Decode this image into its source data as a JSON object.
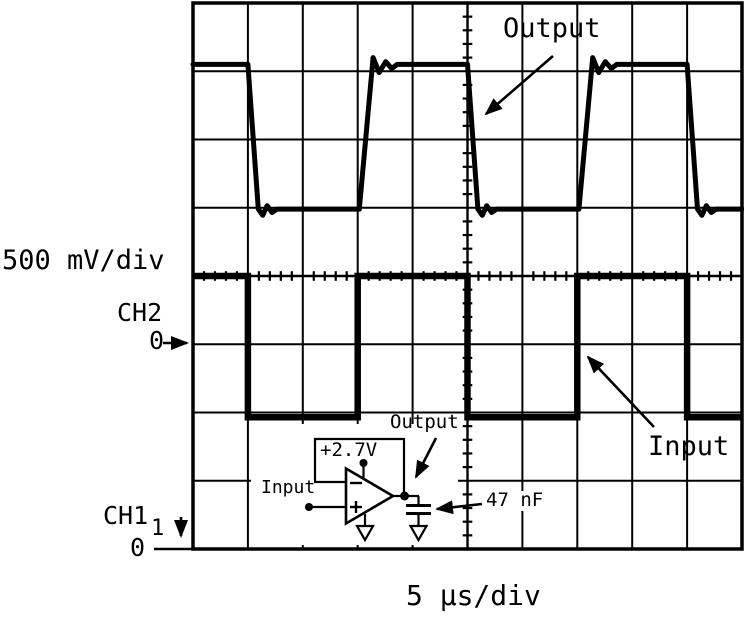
{
  "scope": {
    "vertical_scale": "500 mV/div",
    "horizontal_scale": "5 μs/div",
    "ch2": {
      "label": "CH2",
      "zero": "0"
    },
    "ch1": {
      "label": "CH1",
      "marker": "1",
      "zero": "0"
    },
    "output_annotation": "Output",
    "input_annotation": "Input"
  },
  "circuit": {
    "supply": "+2.7V",
    "input": "Input",
    "output": "Output",
    "capacitor": "47 nF"
  },
  "chart_data": {
    "type": "line",
    "title": "",
    "xlabel": "5 μs/div",
    "ylabel": "500 mV/div",
    "x_range_div": [
      0,
      10
    ],
    "y_divisions": 8,
    "volts_per_div": 0.5,
    "time_per_div_us": 5,
    "grid": true,
    "legend_position": "annotated-arrows",
    "series": [
      {
        "name": "Output",
        "channel": "CH2",
        "zero_div_from_top": 5,
        "points_div_volts": [
          [
            0,
            2.05
          ],
          [
            1.0,
            2.05
          ],
          [
            1.19,
            0.99
          ],
          [
            1.27,
            0.945
          ],
          [
            1.35,
            1.015
          ],
          [
            1.44,
            0.965
          ],
          [
            1.53,
            0.99
          ],
          [
            3.03,
            0.99
          ],
          [
            3.28,
            2.1
          ],
          [
            3.39,
            1.99
          ],
          [
            3.51,
            2.07
          ],
          [
            3.62,
            2.02
          ],
          [
            3.72,
            2.05
          ],
          [
            5.0,
            2.05
          ],
          [
            5.19,
            0.99
          ],
          [
            5.27,
            0.945
          ],
          [
            5.35,
            1.015
          ],
          [
            5.44,
            0.965
          ],
          [
            5.53,
            0.99
          ],
          [
            7.03,
            0.99
          ],
          [
            7.28,
            2.1
          ],
          [
            7.39,
            1.99
          ],
          [
            7.51,
            2.07
          ],
          [
            7.62,
            2.02
          ],
          [
            7.72,
            2.05
          ],
          [
            9.0,
            2.05
          ],
          [
            9.19,
            0.99
          ],
          [
            9.27,
            0.945
          ],
          [
            9.35,
            1.015
          ],
          [
            9.44,
            0.965
          ],
          [
            9.53,
            0.99
          ],
          [
            10,
            0.99
          ]
        ]
      },
      {
        "name": "Input",
        "channel": "CH1",
        "zero_div_from_top": 8,
        "points_div_volts": [
          [
            0,
            2.0
          ],
          [
            1.0,
            2.0
          ],
          [
            1.0,
            0.965
          ],
          [
            3.0,
            0.965
          ],
          [
            3.0,
            2.0
          ],
          [
            5.0,
            2.0
          ],
          [
            5.0,
            0.965
          ],
          [
            7.0,
            0.965
          ],
          [
            7.0,
            2.0
          ],
          [
            9.0,
            2.0
          ],
          [
            9.0,
            0.965
          ],
          [
            10,
            0.965
          ]
        ]
      }
    ]
  }
}
